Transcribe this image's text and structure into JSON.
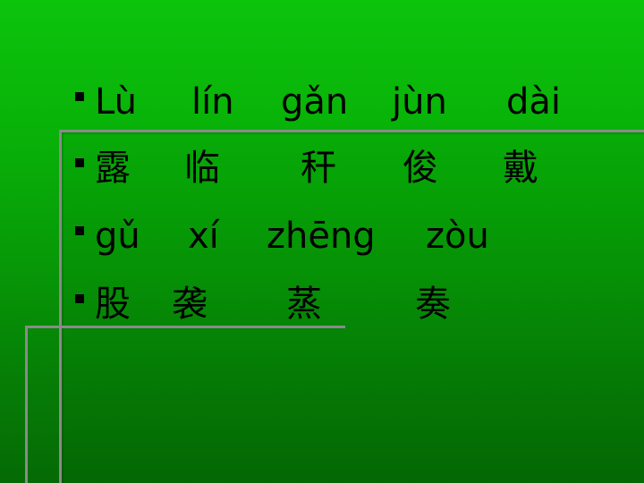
{
  "slide": {
    "lines": [
      {
        "type": "pinyin",
        "words": [
          "Lù",
          "lín",
          "gǎn",
          "jùn",
          "dài"
        ]
      },
      {
        "type": "hanzi",
        "words": [
          "露",
          "临",
          "秆",
          "俊",
          "戴"
        ]
      },
      {
        "type": "pinyin",
        "words": [
          "gǔ",
          "xí",
          "zhēng",
          "zòu"
        ]
      },
      {
        "type": "hanzi",
        "words": [
          "股",
          "袭",
          "蒸",
          "奏"
        ]
      }
    ],
    "bullet_icon": "square-bullet",
    "colors": {
      "background_top": "#0cc40c",
      "background_bottom": "#056a05",
      "text": "#000000",
      "frame": "#8a8a8a"
    }
  }
}
